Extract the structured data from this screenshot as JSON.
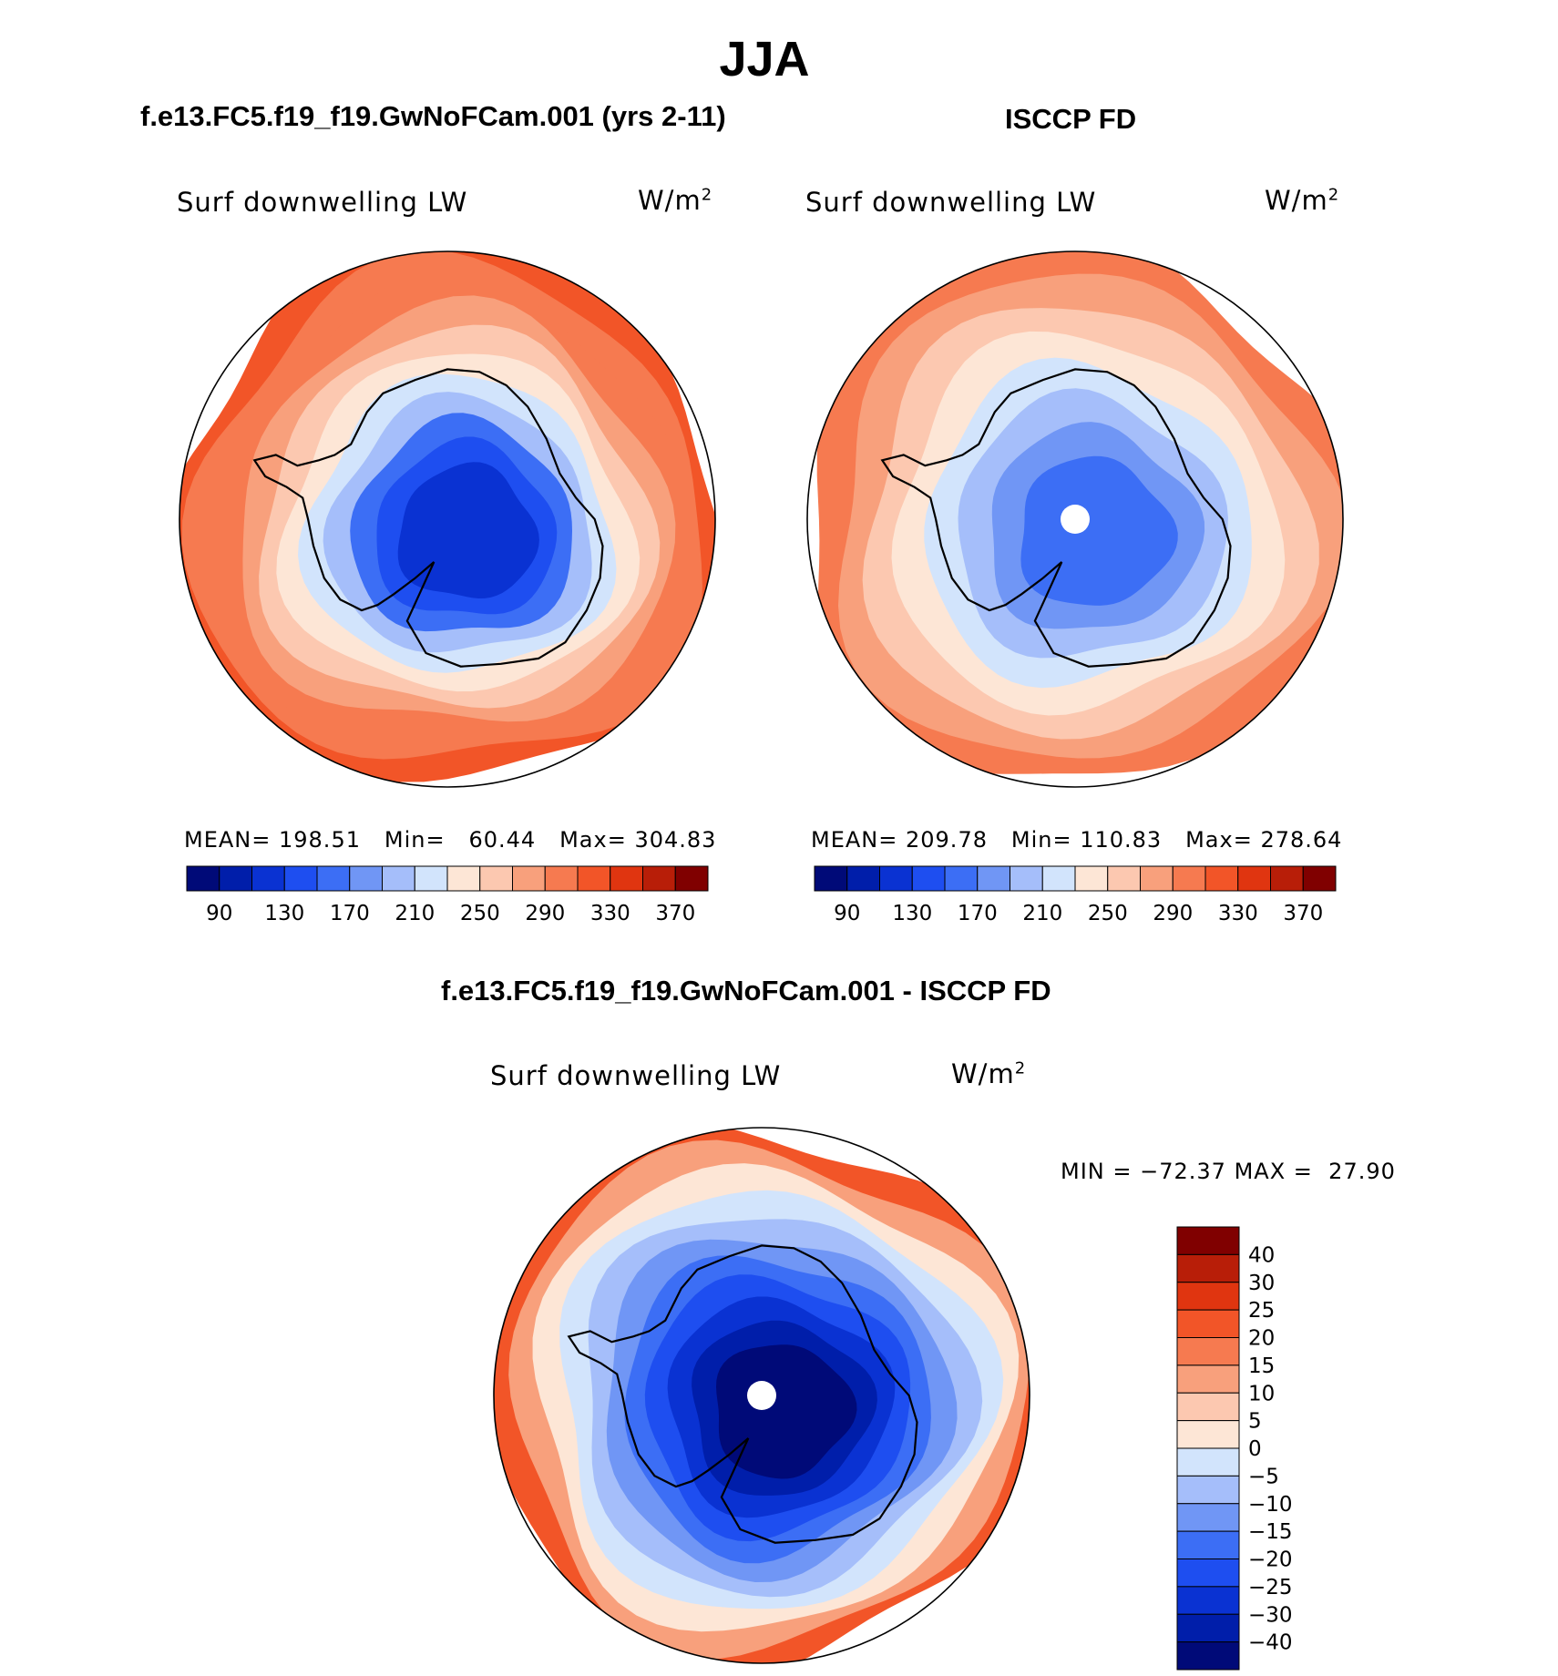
{
  "page": {
    "title": "JJA",
    "panel1_title": "f.e13.FC5.f19_f19.GwNoFCam.001 (yrs 2-11)",
    "panel2_title": "ISCCP FD",
    "panel3_title": "f.e13.FC5.f19_f19.GwNoFCam.001 - ISCCP FD"
  },
  "chart_data": [
    {
      "type": "heatmap",
      "projection": "south-polar-stereographic",
      "title": "f.e13.FC5.f19_f19.GwNoFCam.001 (yrs 2-11)",
      "variable": "Surf downwelling LW",
      "units": "W/m",
      "units_sup": "2",
      "stats": {
        "mean_label": "MEAN=",
        "mean": "198.51",
        "min_label": "Min=",
        "min": "60.44",
        "max_label": "Max=",
        "max": "304.83"
      },
      "colorbar": {
        "orientation": "horizontal",
        "levels": [
          70,
          90,
          110,
          130,
          150,
          170,
          190,
          210,
          230,
          250,
          270,
          290,
          310,
          330,
          350,
          370
        ],
        "tick_labels": [
          "90",
          "130",
          "170",
          "210",
          "250",
          "290",
          "330",
          "370"
        ],
        "colors": [
          "#000a78",
          "#001eaa",
          "#0a32d2",
          "#1e4ef0",
          "#3c6ef5",
          "#7096f5",
          "#a5befa",
          "#d2e4fc",
          "#fde6d6",
          "#fcc8b0",
          "#f8a07c",
          "#f67a50",
          "#f25528",
          "#e03510",
          "#b81e08",
          "#800000"
        ]
      },
      "bands_center_to_edge": [
        100,
        125,
        145,
        170,
        195,
        215,
        235,
        255,
        275,
        285,
        300
      ]
    },
    {
      "type": "heatmap",
      "projection": "south-polar-stereographic",
      "title": "ISCCP FD",
      "variable": "Surf downwelling LW",
      "units": "W/m",
      "units_sup": "2",
      "stats": {
        "mean_label": "MEAN=",
        "mean": "209.78",
        "min_label": "Min=",
        "min": "110.83",
        "max_label": "Max=",
        "max": "278.64"
      },
      "colorbar": {
        "orientation": "horizontal",
        "levels": [
          70,
          90,
          110,
          130,
          150,
          170,
          190,
          210,
          230,
          250,
          270,
          290,
          310,
          330,
          350,
          370
        ],
        "tick_labels": [
          "90",
          "130",
          "170",
          "210",
          "250",
          "290",
          "330",
          "370"
        ],
        "colors": [
          "#000a78",
          "#001eaa",
          "#0a32d2",
          "#1e4ef0",
          "#3c6ef5",
          "#7096f5",
          "#a5befa",
          "#d2e4fc",
          "#fde6d6",
          "#fcc8b0",
          "#f8a07c",
          "#f67a50",
          "#f25528",
          "#e03510",
          "#b81e08",
          "#800000"
        ]
      },
      "bands_center_to_edge": [
        135,
        150,
        175,
        195,
        215,
        235,
        255,
        270
      ]
    },
    {
      "type": "heatmap",
      "projection": "south-polar-stereographic",
      "title": "f.e13.FC5.f19_f19.GwNoFCam.001 - ISCCP FD",
      "variable": "Surf downwelling LW",
      "units": "W/m",
      "units_sup": "2",
      "stats": {
        "min_label": "MIN =",
        "min": "−72.37",
        "max_label": "MAX =",
        "max": "27.90"
      },
      "colorbar": {
        "orientation": "vertical",
        "levels": [
          -40,
          -30,
          -25,
          -20,
          -15,
          -10,
          -5,
          0,
          5,
          10,
          15,
          20,
          25,
          30,
          40
        ],
        "tick_labels": [
          "40",
          "30",
          "25",
          "20",
          "15",
          "10",
          "5",
          "0",
          "−5",
          "−10",
          "−15",
          "−20",
          "−25",
          "−30",
          "−40"
        ],
        "colors": [
          "#800000",
          "#b81e08",
          "#e03510",
          "#f25528",
          "#f67a50",
          "#f8a07c",
          "#fcc8b0",
          "#fde6d6",
          "#d2e4fc",
          "#a5befa",
          "#7096f5",
          "#3c6ef5",
          "#1e4ef0",
          "#0a32d2",
          "#001eaa",
          "#000a78"
        ]
      },
      "bands_center_to_edge": [
        -45,
        -35,
        -27,
        -22,
        -17,
        -12,
        -7,
        -2,
        3,
        12,
        22
      ]
    }
  ]
}
